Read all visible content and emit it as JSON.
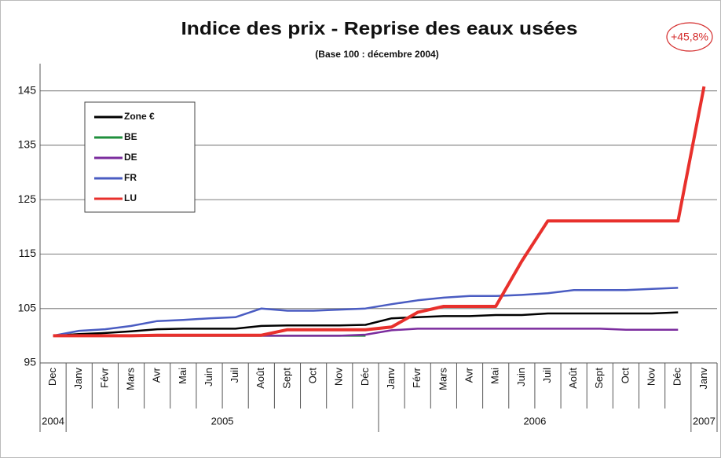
{
  "chart_data": {
    "type": "line",
    "title": "Indice des prix - Reprise des eaux usées",
    "subtitle": "(Base 100 : décembre 2004)",
    "annotation": "+45,8%",
    "categories": [
      "Dec",
      "Janv",
      "Févr",
      "Mars",
      "Avr",
      "Mai",
      "Juin",
      "Juil",
      "Août",
      "Sept",
      "Oct",
      "Nov",
      "Déc",
      "Janv",
      "Févr",
      "Mars",
      "Avr",
      "Mai",
      "Juin",
      "Juil",
      "Août",
      "Sept",
      "Oct",
      "Nov",
      "Déc",
      "Janv"
    ],
    "category_years": [
      "2004",
      "2005",
      "2005",
      "2005",
      "2005",
      "2005",
      "2005",
      "2005",
      "2005",
      "2005",
      "2005",
      "2005",
      "2005",
      "2006",
      "2006",
      "2006",
      "2006",
      "2006",
      "2006",
      "2006",
      "2006",
      "2006",
      "2006",
      "2006",
      "2006",
      "2007"
    ],
    "ylim": [
      95,
      150
    ],
    "yticks": [
      95,
      105,
      115,
      125,
      135,
      145
    ],
    "grid": true,
    "legend": "upper left",
    "series": [
      {
        "name": "Zone €",
        "color": "#000000",
        "values": [
          100,
          100.3,
          100.5,
          100.8,
          101.2,
          101.3,
          101.3,
          101.3,
          101.8,
          101.9,
          101.9,
          101.9,
          102.0,
          103.2,
          103.4,
          103.6,
          103.6,
          103.8,
          103.8,
          104.1,
          104.1,
          104.1,
          104.1,
          104.1,
          104.3,
          null
        ]
      },
      {
        "name": "BE",
        "color": "#1f8f3c",
        "values": [
          100,
          100,
          100,
          100,
          100,
          100,
          100,
          100,
          100,
          100,
          100,
          100,
          100,
          null,
          null,
          null,
          null,
          null,
          null,
          null,
          null,
          null,
          null,
          null,
          null,
          null
        ]
      },
      {
        "name": "DE",
        "color": "#7b2c9e",
        "values": [
          100,
          100,
          100,
          100,
          100,
          100,
          100,
          100,
          100,
          100,
          100,
          100,
          100.2,
          101.0,
          101.3,
          101.3,
          101.3,
          101.3,
          101.3,
          101.3,
          101.3,
          101.3,
          101.1,
          101.1,
          101.1,
          null
        ]
      },
      {
        "name": "FR",
        "color": "#4a5cc2",
        "values": [
          100,
          100.9,
          101.2,
          101.8,
          102.7,
          102.9,
          103.2,
          103.4,
          105.0,
          104.6,
          104.6,
          104.8,
          105.0,
          105.8,
          106.5,
          107.0,
          107.3,
          107.3,
          107.5,
          107.8,
          108.4,
          108.4,
          108.4,
          108.6,
          108.8,
          null
        ]
      },
      {
        "name": "LU",
        "color": "#e8302c",
        "values": [
          100,
          100,
          100,
          100,
          100.1,
          100.1,
          100.1,
          100.1,
          100.1,
          101.1,
          101.1,
          101.1,
          101.1,
          101.6,
          104.3,
          105.4,
          105.4,
          105.4,
          113.7,
          121.1,
          121.1,
          121.1,
          121.1,
          121.1,
          121.1,
          145.8
        ]
      }
    ]
  }
}
